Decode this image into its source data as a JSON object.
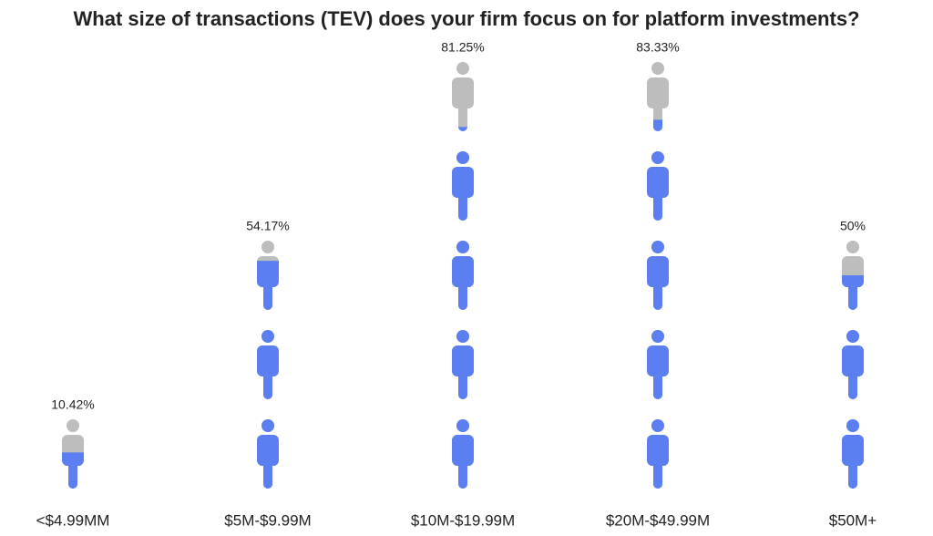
{
  "chart_data": {
    "type": "pictograph",
    "title": "What size of transactions (TEV) does your firm focus on for platform investments?",
    "categories": [
      "<$4.99MM",
      "$5M-$9.99M",
      "$10M-$19.99M",
      "$20M-$49.99M",
      "$50M+"
    ],
    "values": [
      10.42,
      54.17,
      81.25,
      83.33,
      50
    ],
    "value_labels": [
      "10.42%",
      "54.17%",
      "81.25%",
      "83.33%",
      "50%"
    ],
    "ylim": [
      0,
      100
    ],
    "icon_count": 5,
    "color": "#5b7ff0",
    "empty_color": "#bdbdbd"
  }
}
